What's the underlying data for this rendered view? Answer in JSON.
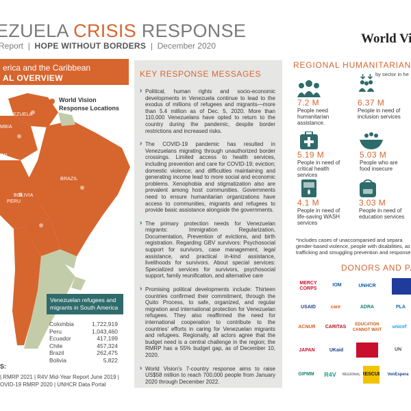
{
  "header": {
    "title_part1": "EZUELA ",
    "title_part2": "CRISIS",
    "title_part3": " RESPONSE",
    "subtitle_report": "Report",
    "subtitle_tag": "HOPE WITHOUT BORDERS",
    "subtitle_date": "December 2020",
    "brand": "World Visi"
  },
  "map": {
    "banner_line1": "erica and the Caribbean",
    "banner_line2": "AL OVERVIEW",
    "legend_line1": "World Vision",
    "legend_line2": "Response Locations",
    "countries": {
      "venezuela": "VENEZUELA",
      "colombia": "MBIA",
      "ecuador": "OR",
      "peru": "PERU",
      "brazil": "BRAZIL",
      "bolivia": "BOLIVIA"
    },
    "accent_color": "#d7652e",
    "neutral_color": "#c3cca9"
  },
  "refugees": {
    "title": "Venezuelan refugees and migrants in South America",
    "rows": [
      {
        "country": "Colombia",
        "value": "1,722,919"
      },
      {
        "country": "Peru",
        "value": "1,043,460"
      },
      {
        "country": "Ecuador",
        "value": "417,199"
      },
      {
        "country": "Chile",
        "value": "457,324"
      },
      {
        "country": "Brazil",
        "value": "262,475"
      },
      {
        "country": "Bolivia",
        "value": "5,822"
      }
    ]
  },
  "sources": {
    "label": "S:",
    "line1": "| RMRP 2021 | R4V Mid-Year Report June 2019 |",
    "line2": "OVID-19 RMRP 2020  |  UNHCR Data Portal"
  },
  "key_messages": {
    "title": "KEY RESPONSE MESSAGES",
    "items": [
      "Political, human rights and socio-economic developments in Venezuela continue to lead to the exodus of millions of refugees and migrants—more than 5.4 million as of Dec. 5, 2020. More than 110,000 Venezuelans have opted to return to the country during the pandemic, despite border restrictions and increased risks.",
      "The COVID-19 pandemic has resulted in Venezuelans migrating through unauthorized border crossings. Limited access to health services, including prevention and care for COVID-19; eviction; domestic violence; and difficulties maintaining and generating income lead to more social and economic problems. Xenophobia and stigmatization also are prevalent among host communities. Governments need to ensure humanitarian organizations have access to communities, migrants and refugees to provide basic assistance alongside the governments.",
      "The primary protection needs for Venezuelan migrants: Immigration Regularization, Documentation, Prevention of evictions, and birth registration. Regarding GBV survivors: Psychosocial support for survivors, case management, legal assistance, and practical in-kind assistance, livelihoods for survivors. About special services: Specialized services for survivors, psychosocial support, family reunification, and alternative care",
      "Promising political developments include: Thirteen countries confirmed their commitment, through the Quito Process, to safe, organized, and regular migration and international protection for Venezuelan refugees. They also reaffirmed the need for international cooperation to contribute to the countries' efforts in caring for Venezuelan migrants and refugees. Regionally, all actors agree that the budget need is a central challenge in the region; the RMRP has a 55% budget gap, as of December 10, 2020.",
      "World Vision's 7-country response aims to raise US$58 million to reach 700,000 people from January 2020 through December 2022."
    ]
  },
  "regional_needs": {
    "title": "REGIONAL HUMANITARIAN",
    "subtitle": "by sector in he",
    "stats": [
      {
        "value": "7.2 M",
        "desc": "People need humanitarian assistance.",
        "icon": "people-group-icon"
      },
      {
        "value": "6.37 M",
        "desc": "People in need of inclusion services",
        "icon": "inclusion-arrows-icon"
      },
      {
        "value": "5.19 M",
        "desc": "People in need of critical health services",
        "icon": "medical-kit-icon"
      },
      {
        "value": "5.03 M",
        "desc": "People who are food insecure",
        "icon": "food-bowl-icon"
      },
      {
        "value": "4.1 M",
        "desc": "People in need of life-saving WASH services",
        "icon": "water-glass-icon"
      },
      {
        "value": "3.03 M",
        "desc": "People in need of education services",
        "icon": "school-bag-icon"
      }
    ],
    "footnote": "*Includes cases of unaccompanied and separa gender-based violence, people with disabilities, as w trafficking and smuggling prevention and response"
  },
  "donors": {
    "title": "DONORS AND PA",
    "logos": [
      {
        "text": "MERCY CORPS",
        "color": "#c8102e"
      },
      {
        "text": "IOM",
        "color": "#0b5ca8"
      },
      {
        "text": "UNHCR",
        "color": "#0b5ca8"
      },
      {
        "text": "EU",
        "color": "#1f3b9c"
      },
      {
        "text": "USAID",
        "color": "#1b3f8b"
      },
      {
        "text": "care",
        "color": "#e05a1f"
      },
      {
        "text": "ADRA",
        "color": "#17806d"
      },
      {
        "text": "PLA",
        "color": "#1a63b0"
      },
      {
        "text": "ACNUR",
        "color": "#d95f1c"
      },
      {
        "text": "CARITAS",
        "color": "#b3131b"
      },
      {
        "text": "EDUCATION CANNOT WAIT",
        "color": "#c95a12"
      },
      {
        "text": "unicef",
        "color": "#1ca1dc"
      },
      {
        "text": "JAPAN",
        "color": "#c8102e"
      },
      {
        "text": "UKaid",
        "color": "#1b3f8b"
      },
      {
        "text": "START FUND",
        "color": "#c8102e"
      },
      {
        "text": "UN",
        "color": "#555555"
      },
      {
        "text": "GIFMM",
        "color": "#17806d"
      },
      {
        "text": "R4V",
        "color": "#1f9c8a"
      },
      {
        "text": "REGIONAL",
        "color": "#777777"
      },
      {
        "text": "RESCUE",
        "color": "#f2c400"
      },
      {
        "text": "VenEspera",
        "color": "#1b3f8b"
      }
    ]
  }
}
